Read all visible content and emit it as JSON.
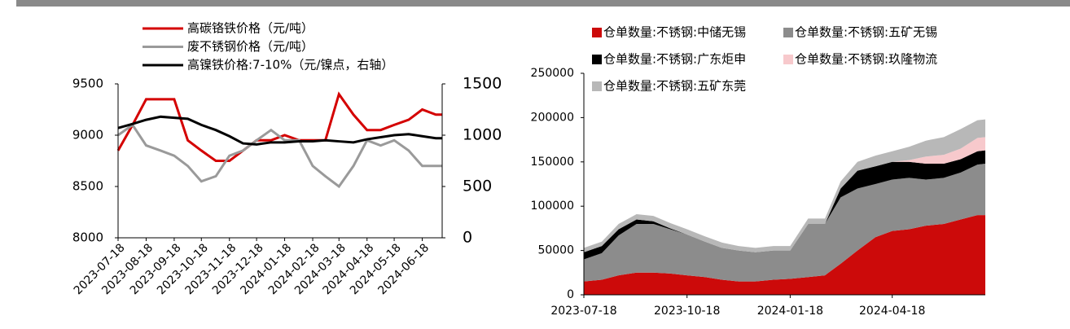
{
  "chart_data": [
    {
      "type": "line",
      "x": [
        "2023-07-18",
        "2023-08-03",
        "2023-08-18",
        "2023-09-03",
        "2023-09-18",
        "2023-10-03",
        "2023-10-18",
        "2023-11-03",
        "2023-11-18",
        "2023-12-03",
        "2023-12-18",
        "2024-01-03",
        "2024-01-18",
        "2024-02-03",
        "2024-02-18",
        "2024-03-03",
        "2024-03-18",
        "2024-04-03",
        "2024-04-18",
        "2024-05-03",
        "2024-05-18",
        "2024-06-03",
        "2024-06-18",
        "2024-07-03",
        "2024-07-10"
      ],
      "series": [
        {
          "name": "高碳铬铁价格（元/吨）",
          "color": "#d40000",
          "values": [
            8850,
            9100,
            9350,
            9350,
            9350,
            8950,
            8850,
            8750,
            8750,
            8850,
            8950,
            8950,
            9000,
            8950,
            8950,
            8950,
            9400,
            9200,
            9050,
            9050,
            9100,
            9150,
            9250,
            9200,
            9200
          ]
        },
        {
          "name": "废不锈钢价格（元/吨）",
          "color": "#9a9a9a",
          "values": [
            9000,
            9100,
            8900,
            8850,
            8800,
            8700,
            8550,
            8600,
            8800,
            8850,
            8950,
            9050,
            8950,
            8950,
            8700,
            8600,
            8500,
            8700,
            8950,
            8900,
            8950,
            8850,
            8700,
            8700,
            8700
          ]
        },
        {
          "name": "高镍铁价格:7-10%（元/镍点，右轴）",
          "color": "#000000",
          "axis": "y2",
          "values": [
            1070,
            1110,
            1150,
            1180,
            1170,
            1160,
            1100,
            1050,
            990,
            920,
            910,
            930,
            930,
            940,
            940,
            950,
            940,
            930,
            960,
            980,
            1000,
            1010,
            990,
            970,
            970
          ]
        }
      ],
      "xlim": [
        "2023-07-18",
        "2024-07-10"
      ],
      "xticks": [
        "2023-07-18",
        "2023-08-18",
        "2023-09-18",
        "2023-10-18",
        "2023-11-18",
        "2023-12-18",
        "2024-01-18",
        "2024-02-18",
        "2024-03-18",
        "2024-04-18",
        "2024-05-18",
        "2024-06-18"
      ],
      "ylim": [
        8000,
        9500
      ],
      "yticks": [
        8000,
        8500,
        9000,
        9500
      ],
      "y2lim": [
        0,
        1500
      ],
      "y2ticks": [
        0,
        500,
        1000,
        1500
      ]
    },
    {
      "type": "area",
      "x": [
        "2023-07-18",
        "2023-08-03",
        "2023-08-18",
        "2023-09-03",
        "2023-09-18",
        "2023-10-03",
        "2023-10-18",
        "2023-11-03",
        "2023-11-18",
        "2023-12-03",
        "2023-12-18",
        "2024-01-03",
        "2024-01-18",
        "2024-02-03",
        "2024-02-18",
        "2024-03-03",
        "2024-03-18",
        "2024-04-03",
        "2024-04-18",
        "2024-05-03",
        "2024-05-18",
        "2024-06-03",
        "2024-06-18",
        "2024-07-03",
        "2024-07-10"
      ],
      "series": [
        {
          "name": "仓单数量:不锈钢:中储无锡",
          "color": "#cc0a0a",
          "values": [
            15000,
            17000,
            22000,
            25000,
            25000,
            24000,
            22000,
            20000,
            17000,
            15000,
            15000,
            17000,
            18000,
            20000,
            22000,
            35000,
            50000,
            65000,
            72000,
            74000,
            78000,
            80000,
            85000,
            90000,
            90000
          ]
        },
        {
          "name": "仓单数量:不锈钢:五矿无锡",
          "color": "#8c8c8c",
          "values": [
            25000,
            30000,
            45000,
            55000,
            55000,
            50000,
            46000,
            40000,
            36000,
            35000,
            33000,
            33000,
            32000,
            60000,
            58000,
            75000,
            70000,
            60000,
            58000,
            58000,
            52000,
            52000,
            53000,
            57000,
            58000
          ]
        },
        {
          "name": "仓单数量:不锈钢:广东炬申",
          "color": "#000000",
          "values": [
            8000,
            8000,
            7000,
            5000,
            3000,
            1000,
            0,
            0,
            0,
            0,
            0,
            0,
            0,
            0,
            0,
            10000,
            20000,
            20000,
            20000,
            18000,
            18000,
            16000,
            15000,
            15000,
            15000
          ]
        },
        {
          "name": "仓单数量:不锈钢:玖隆物流",
          "color": "#f7c9cc",
          "values": [
            0,
            0,
            0,
            0,
            0,
            0,
            0,
            0,
            0,
            0,
            0,
            0,
            0,
            0,
            0,
            0,
            0,
            0,
            0,
            2000,
            8000,
            10000,
            12000,
            15000,
            15000
          ]
        },
        {
          "name": "仓单数量:不锈钢:五矿东莞",
          "color": "#b8b8b8",
          "values": [
            5000,
            5000,
            6000,
            6000,
            6000,
            6000,
            6000,
            6000,
            6000,
            5000,
            5000,
            5000,
            5000,
            6000,
            6000,
            8000,
            10000,
            12000,
            12000,
            15000,
            18000,
            20000,
            22000,
            20000,
            20000
          ]
        }
      ],
      "xlim": [
        "2023-07-18",
        "2024-07-10"
      ],
      "xticks": [
        "2023-07-18",
        "2023-10-18",
        "2024-01-18",
        "2024-04-18"
      ],
      "ylim": [
        0,
        250000
      ],
      "yticks": [
        0,
        50000,
        100000,
        150000,
        200000,
        250000
      ]
    }
  ]
}
